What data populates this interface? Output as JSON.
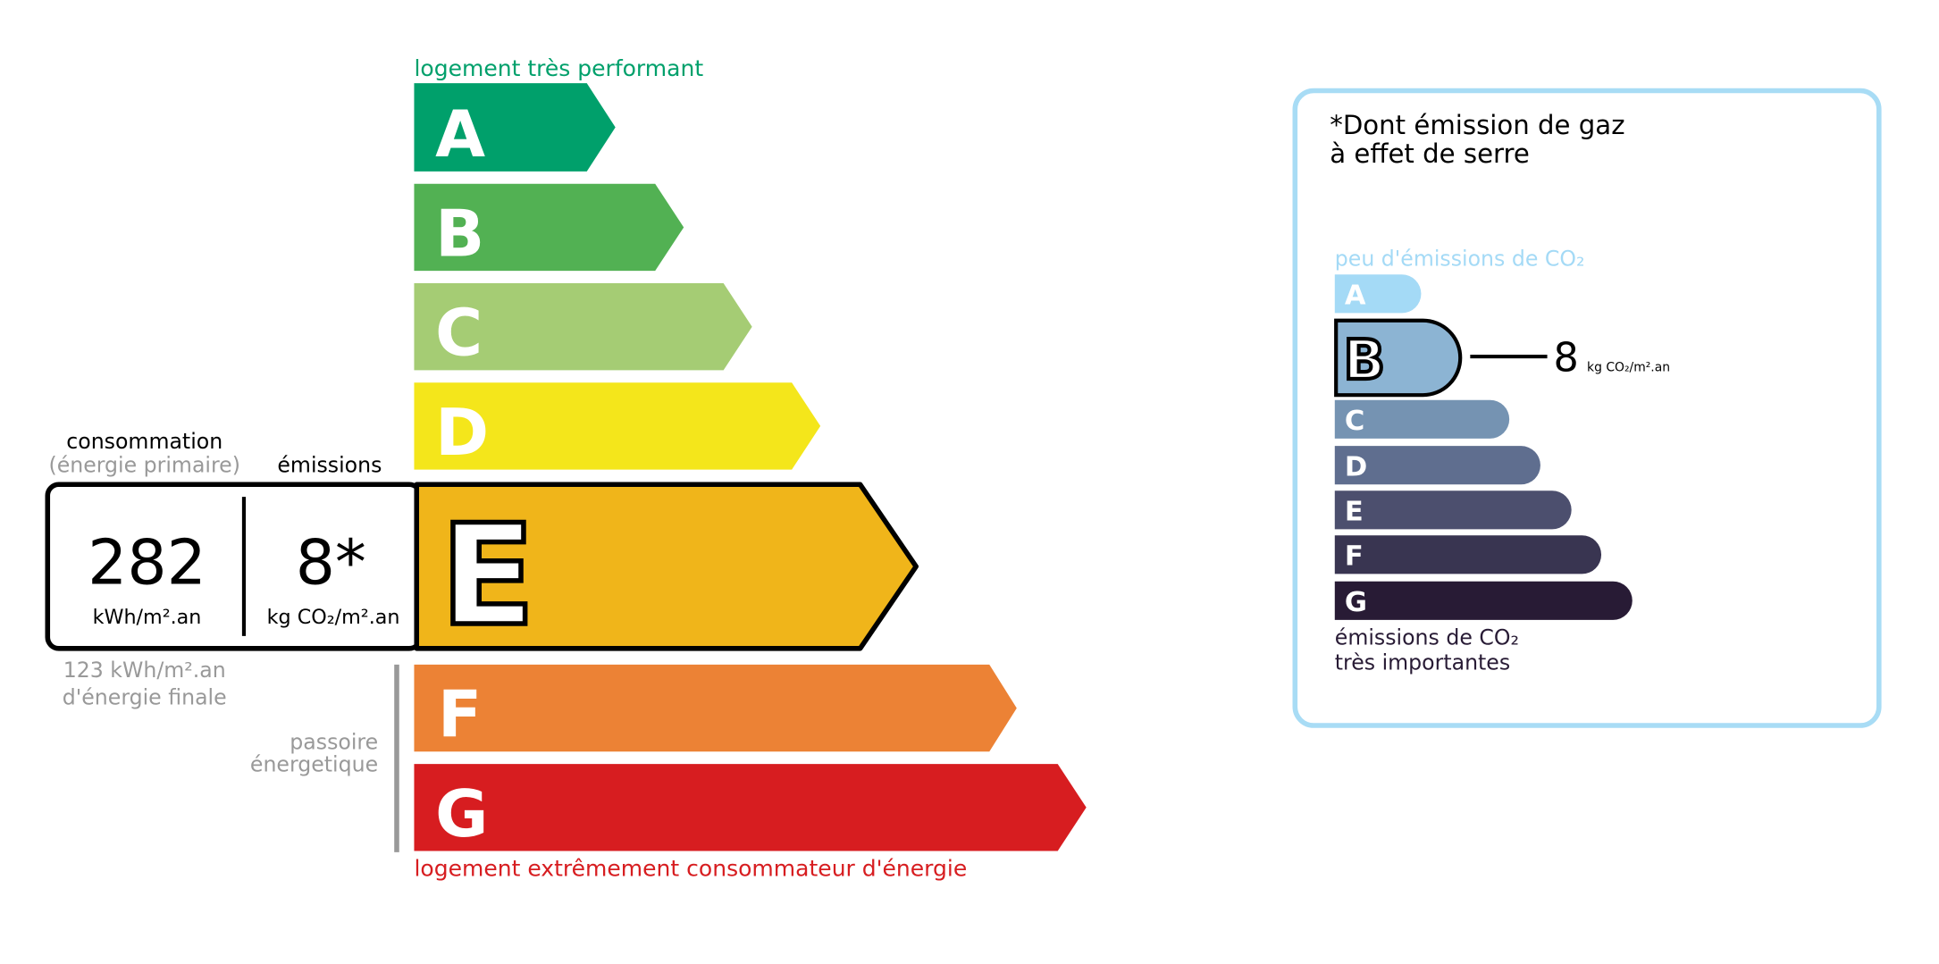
{
  "energy": {
    "top_label": "logement très performant",
    "bottom_label": "logement extrêmement consommateur d'énergie",
    "current_class": "E",
    "classes": [
      {
        "letter": "A",
        "color": "#00a06b"
      },
      {
        "letter": "B",
        "color": "#52b153"
      },
      {
        "letter": "C",
        "color": "#a5cc74"
      },
      {
        "letter": "D",
        "color": "#f4e61b"
      },
      {
        "letter": "E",
        "color": "#f0b51a"
      },
      {
        "letter": "F",
        "color": "#ec8235"
      },
      {
        "letter": "G",
        "color": "#d71d20"
      }
    ],
    "consumption_label": "consommation",
    "consumption_sublabel": "(énergie primaire)",
    "emissions_label": "émissions",
    "consumption_value": "282",
    "consumption_unit": "kWh/m².an",
    "emissions_value": "8*",
    "emissions_unit": "kg CO₂/m².an",
    "final_energy_line1": "123 kWh/m².an",
    "final_energy_line2": "d'énergie finale",
    "passoire_line1": "passoire",
    "passoire_line2": "énergetique"
  },
  "ges": {
    "title_line1": "*Dont émission de gaz",
    "title_line2": "à effet de serre",
    "top_label": "peu d'émissions de CO₂",
    "bottom_label_line1": "émissions de CO₂",
    "bottom_label_line2": "très importantes",
    "current_class": "B",
    "value": "8",
    "unit": "kg CO₂/m².an",
    "border_color": "#a8dcf5",
    "classes": [
      {
        "letter": "A",
        "color": "#a4daf6"
      },
      {
        "letter": "B",
        "color": "#8cb4d3"
      },
      {
        "letter": "C",
        "color": "#7593b2"
      },
      {
        "letter": "D",
        "color": "#5f6e8f"
      },
      {
        "letter": "E",
        "color": "#4c4f6e"
      },
      {
        "letter": "F",
        "color": "#393551"
      },
      {
        "letter": "G",
        "color": "#281b35"
      }
    ]
  }
}
